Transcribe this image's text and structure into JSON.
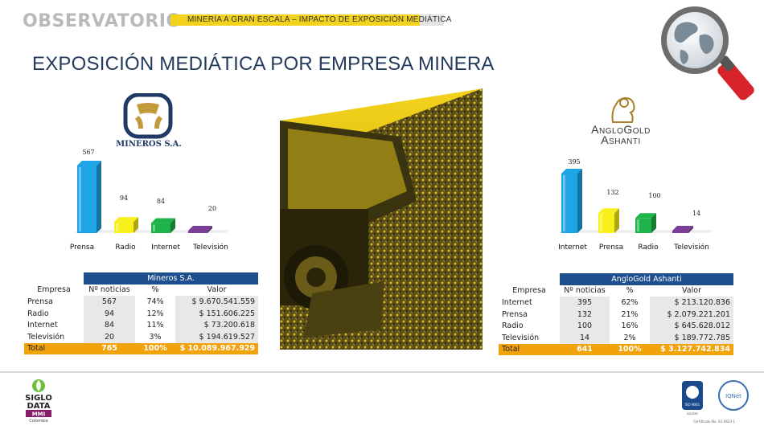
{
  "header": {
    "brand": "OBSERVATORIO",
    "subtitle": "MINERÍA A GRAN ESCALA – IMPACTO DE EXPOSICIÓN MEDIÁTICA",
    "title": "EXPOSICIÓN MEDIÁTICA POR EMPRESA MINERA"
  },
  "logos": {
    "mineros": "MINEROS S.A.",
    "anglo_line1": "AngloGold",
    "anglo_line2": "Ashanti",
    "siglo_line1": "SIGLO",
    "siglo_line2": "DATA",
    "siglo_line3": "MMI",
    "siglo_line4": "Colombia",
    "cert_left": "ISO 9001",
    "cert_left_sub": "icontec",
    "cert_right": "IQNet",
    "cert_caption": "Certificado No. SG 6623-1"
  },
  "chart_data": [
    {
      "type": "bar",
      "categories": [
        "Prensa",
        "Radio",
        "Internet",
        "Televisión"
      ],
      "values": [
        567,
        94,
        84,
        20
      ],
      "colors": [
        "#1ea5e6",
        "#f7f01a",
        "#1fb44a",
        "#7b3f98"
      ]
    },
    {
      "type": "bar",
      "categories": [
        "Internet",
        "Prensa",
        "Radio",
        "Televisión"
      ],
      "values": [
        395,
        132,
        100,
        14
      ],
      "colors": [
        "#1ea5e6",
        "#f7f01a",
        "#1fb44a",
        "#7b3f98"
      ]
    }
  ],
  "tables": [
    {
      "caption": "Mineros S.A.",
      "headers": [
        "Empresa",
        "Nº noticias",
        "%",
        "Valor"
      ],
      "rows": [
        [
          "Prensa",
          "567",
          "74%",
          "$ 9.670.541.559"
        ],
        [
          "Radio",
          "94",
          "12%",
          "$ 151.606.225"
        ],
        [
          "Internet",
          "84",
          "11%",
          "$ 73.200.618"
        ],
        [
          "Televisión",
          "20",
          "3%",
          "$ 194.619.527"
        ]
      ],
      "total": [
        "Total",
        "765",
        "100%",
        "$ 10.089.967.929"
      ]
    },
    {
      "caption": "AngloGold Ashanti",
      "headers": [
        "Empresa",
        "Nº noticias",
        "%",
        "Valor"
      ],
      "rows": [
        [
          "Internet",
          "395",
          "62%",
          "$ 213.120.836"
        ],
        [
          "Prensa",
          "132",
          "21%",
          "$ 2.079.221.201"
        ],
        [
          "Radio",
          "100",
          "16%",
          "$ 645.628.012"
        ],
        [
          "Televisión",
          "14",
          "2%",
          "$ 189.772.785"
        ]
      ],
      "total": [
        "Total",
        "641",
        "100%",
        "$ 3.127.742.834"
      ]
    }
  ]
}
